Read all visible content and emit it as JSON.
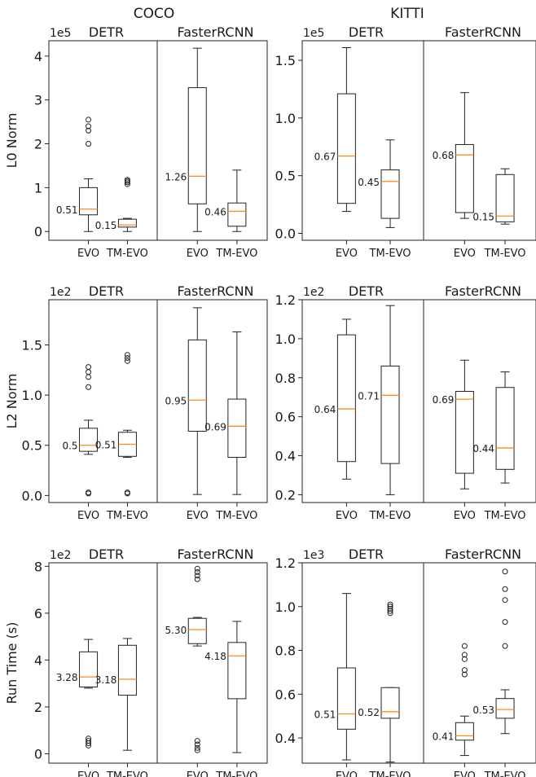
{
  "chart_data": {
    "type": "box",
    "column_titles": [
      "COCO",
      "KITTI"
    ],
    "x_categories": [
      "EVO",
      "TM-EVO"
    ],
    "panels": [
      {
        "row": 0,
        "col": 0,
        "ylabel": "L0 Norm",
        "scale": "1e5",
        "yticks": [
          0,
          1,
          2,
          3,
          4
        ],
        "ylim": [
          -0.2,
          4.35
        ],
        "groups": [
          {
            "title": "DETR",
            "boxes": [
              {
                "category": "EVO",
                "whislo": 0.0,
                "q1": 0.38,
                "med": 0.51,
                "q3": 1.0,
                "whishi": 1.2,
                "fliers": [
                  2.0,
                  2.3,
                  2.4,
                  2.55
                ],
                "label": "0.51",
                "label_side": "left"
              },
              {
                "category": "TM-EVO",
                "whislo": 0.0,
                "q1": 0.1,
                "med": 0.15,
                "q3": 0.28,
                "whishi": 0.3,
                "fliers": [
                  1.08,
                  1.12,
                  1.15,
                  1.18
                ],
                "label": "0.15",
                "label_side": "left"
              }
            ]
          },
          {
            "title": "FasterRCNN",
            "boxes": [
              {
                "category": "EVO",
                "whislo": 0.0,
                "q1": 0.63,
                "med": 1.26,
                "q3": 3.28,
                "whishi": 4.18,
                "fliers": [],
                "label": "1.26",
                "label_side": "left"
              },
              {
                "category": "TM-EVO",
                "whislo": 0.0,
                "q1": 0.12,
                "med": 0.46,
                "q3": 0.65,
                "whishi": 1.4,
                "fliers": [],
                "label": "0.46",
                "label_side": "left"
              }
            ]
          }
        ]
      },
      {
        "row": 0,
        "col": 1,
        "ylabel": "",
        "scale": "1e5",
        "yticks": [
          0.0,
          0.5,
          1.0,
          1.5
        ],
        "ylim": [
          -0.06,
          1.67
        ],
        "groups": [
          {
            "title": "DETR",
            "boxes": [
              {
                "category": "EVO",
                "whislo": 0.19,
                "q1": 0.26,
                "med": 0.67,
                "q3": 1.21,
                "whishi": 1.61,
                "fliers": [],
                "label": "0.67",
                "label_side": "left"
              },
              {
                "category": "TM-EVO",
                "whislo": 0.05,
                "q1": 0.13,
                "med": 0.45,
                "q3": 0.55,
                "whishi": 0.81,
                "fliers": [],
                "label": "0.45",
                "label_side": "left"
              }
            ]
          },
          {
            "title": "FasterRCNN",
            "boxes": [
              {
                "category": "EVO",
                "whislo": 0.13,
                "q1": 0.18,
                "med": 0.68,
                "q3": 0.77,
                "whishi": 1.22,
                "fliers": [],
                "label": "0.68",
                "label_side": "left"
              },
              {
                "category": "TM-EVO",
                "whislo": 0.08,
                "q1": 0.1,
                "med": 0.15,
                "q3": 0.51,
                "whishi": 0.56,
                "fliers": [],
                "label": "0.15",
                "label_side": "left"
              }
            ]
          }
        ]
      },
      {
        "row": 1,
        "col": 0,
        "ylabel": "L2 Norm",
        "scale": "1e2",
        "yticks": [
          0.0,
          0.5,
          1.0,
          1.5
        ],
        "ylim": [
          -0.07,
          1.95
        ],
        "groups": [
          {
            "title": "DETR",
            "boxes": [
              {
                "category": "EVO",
                "whislo": 0.41,
                "q1": 0.44,
                "med": 0.5,
                "q3": 0.67,
                "whishi": 0.75,
                "fliers": [
                  0.02,
                  0.03,
                  1.08,
                  1.18,
                  1.23,
                  1.28
                ],
                "label": "0.5",
                "label_side": "left"
              },
              {
                "category": "TM-EVO",
                "whislo": 0.38,
                "q1": 0.39,
                "med": 0.51,
                "q3": 0.63,
                "whishi": 0.65,
                "fliers": [
                  0.02,
                  0.03,
                  1.34,
                  1.37,
                  1.4
                ],
                "label": "0.51",
                "label_side": "left"
              }
            ]
          },
          {
            "title": "FasterRCNN",
            "boxes": [
              {
                "category": "EVO",
                "whislo": 0.01,
                "q1": 0.64,
                "med": 0.95,
                "q3": 1.55,
                "whishi": 1.87,
                "fliers": [],
                "label": "0.95",
                "label_side": "left"
              },
              {
                "category": "TM-EVO",
                "whislo": 0.01,
                "q1": 0.38,
                "med": 0.69,
                "q3": 0.96,
                "whishi": 1.63,
                "fliers": [],
                "label": "0.69",
                "label_side": "left"
              }
            ]
          }
        ]
      },
      {
        "row": 1,
        "col": 1,
        "ylabel": "",
        "scale": "1e2",
        "yticks": [
          0.2,
          0.4,
          0.6,
          0.8,
          1.0,
          1.2
        ],
        "ylim": [
          0.16,
          1.2
        ],
        "groups": [
          {
            "title": "DETR",
            "boxes": [
              {
                "category": "EVO",
                "whislo": 0.28,
                "q1": 0.37,
                "med": 0.64,
                "q3": 1.02,
                "whishi": 1.1,
                "fliers": [],
                "label": "0.64",
                "label_side": "left"
              },
              {
                "category": "TM-EVO",
                "whislo": 0.2,
                "q1": 0.36,
                "med": 0.71,
                "q3": 0.86,
                "whishi": 1.17,
                "fliers": [],
                "label": "0.71",
                "label_side": "left"
              }
            ]
          },
          {
            "title": "FasterRCNN",
            "boxes": [
              {
                "category": "EVO",
                "whislo": 0.23,
                "q1": 0.31,
                "med": 0.69,
                "q3": 0.73,
                "whishi": 0.89,
                "fliers": [],
                "label": "0.69",
                "label_side": "left"
              },
              {
                "category": "TM-EVO",
                "whislo": 0.26,
                "q1": 0.33,
                "med": 0.44,
                "q3": 0.75,
                "whishi": 0.83,
                "fliers": [],
                "label": "0.44",
                "label_side": "left"
              }
            ]
          }
        ]
      },
      {
        "row": 2,
        "col": 0,
        "ylabel": "Run Time (s)",
        "scale": "1e2",
        "yticks": [
          0,
          2,
          4,
          6,
          8
        ],
        "ylim": [
          -0.4,
          8.15
        ],
        "groups": [
          {
            "title": "DETR",
            "boxes": [
              {
                "category": "EVO",
                "whislo": 2.8,
                "q1": 2.85,
                "med": 3.28,
                "q3": 4.35,
                "whishi": 4.88,
                "fliers": [
                  0.35,
                  0.45,
                  0.55,
                  0.65
                ],
                "label": "3.28",
                "label_side": "left"
              },
              {
                "category": "TM-EVO",
                "whislo": 0.15,
                "q1": 2.5,
                "med": 3.18,
                "q3": 4.63,
                "whishi": 4.92,
                "fliers": [],
                "label": "3.18",
                "label_side": "left"
              }
            ]
          },
          {
            "title": "FasterRCNN",
            "boxes": [
              {
                "category": "EVO",
                "whislo": 4.6,
                "q1": 4.7,
                "med": 5.3,
                "q3": 5.78,
                "whishi": 5.82,
                "fliers": [
                  0.15,
                  0.25,
                  0.4,
                  0.55,
                  7.45,
                  7.6,
                  7.75,
                  7.9
                ],
                "label": "5.30",
                "label_side": "left"
              },
              {
                "category": "TM-EVO",
                "whislo": 0.05,
                "q1": 2.35,
                "med": 4.18,
                "q3": 4.75,
                "whishi": 5.65,
                "fliers": [],
                "label": "4.18",
                "label_side": "left"
              }
            ]
          }
        ]
      },
      {
        "row": 2,
        "col": 1,
        "ylabel": "",
        "scale": "1e3",
        "yticks": [
          0.4,
          0.6,
          0.8,
          1.0,
          1.2
        ],
        "ylim": [
          0.285,
          1.2
        ],
        "groups": [
          {
            "title": "DETR",
            "boxes": [
              {
                "category": "EVO",
                "whislo": 0.3,
                "q1": 0.44,
                "med": 0.51,
                "q3": 0.72,
                "whishi": 1.06,
                "fliers": [],
                "label": "0.51",
                "label_side": "left"
              },
              {
                "category": "TM-EVO",
                "whislo": 0.29,
                "q1": 0.49,
                "med": 0.52,
                "q3": 0.63,
                "whishi": 0.63,
                "fliers": [
                  0.97,
                  0.98,
                  0.99,
                  1.0,
                  1.01
                ],
                "label": "0.52",
                "label_side": "left"
              }
            ]
          },
          {
            "title": "FasterRCNN",
            "boxes": [
              {
                "category": "EVO",
                "whislo": 0.32,
                "q1": 0.39,
                "med": 0.41,
                "q3": 0.47,
                "whishi": 0.5,
                "fliers": [
                  0.69,
                  0.71,
                  0.76,
                  0.78,
                  0.82
                ],
                "label": "0.41",
                "label_side": "left"
              },
              {
                "category": "TM-EVO",
                "whislo": 0.42,
                "q1": 0.49,
                "med": 0.53,
                "q3": 0.58,
                "whishi": 0.62,
                "fliers": [
                  0.82,
                  0.93,
                  1.03,
                  1.08,
                  1.16
                ],
                "label": "0.53",
                "label_side": "left"
              }
            ]
          }
        ]
      }
    ]
  }
}
